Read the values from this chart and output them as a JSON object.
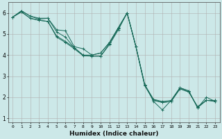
{
  "xlabel": "Humidex (Indice chaleur)",
  "ylabel": "",
  "bg_color": "#cce8e8",
  "grid_color": "#b0b0b0",
  "line_color": "#1a6b5a",
  "xlim": [
    -0.5,
    23.5
  ],
  "ylim": [
    0.8,
    6.5
  ],
  "yticks": [
    1,
    2,
    3,
    4,
    5,
    6
  ],
  "xticks": [
    0,
    1,
    2,
    3,
    4,
    5,
    6,
    7,
    8,
    9,
    10,
    11,
    12,
    13,
    14,
    15,
    16,
    17,
    18,
    19,
    20,
    21,
    22,
    23
  ],
  "lines": [
    [
      5.8,
      6.1,
      5.85,
      5.75,
      5.75,
      5.2,
      5.15,
      4.4,
      4.3,
      4.0,
      4.1,
      4.6,
      5.3,
      6.0,
      4.4,
      2.6,
      1.8,
      1.4,
      1.85,
      2.45,
      2.3,
      1.5,
      2.0,
      1.8
    ],
    [
      5.8,
      6.1,
      5.85,
      5.7,
      5.75,
      5.1,
      4.85,
      4.35,
      4.0,
      4.0,
      4.1,
      4.6,
      5.3,
      6.0,
      4.4,
      2.6,
      1.9,
      1.8,
      1.85,
      2.45,
      2.3,
      1.5,
      1.85,
      1.8
    ],
    [
      5.8,
      6.05,
      5.75,
      5.65,
      5.6,
      4.9,
      4.65,
      4.35,
      4.0,
      3.95,
      3.95,
      4.55,
      5.25,
      6.0,
      4.4,
      2.55,
      1.85,
      1.75,
      1.8,
      2.4,
      2.25,
      1.55,
      1.85,
      1.85
    ],
    [
      5.8,
      6.05,
      5.75,
      5.65,
      5.6,
      4.85,
      4.6,
      4.3,
      3.97,
      3.95,
      3.95,
      4.5,
      5.2,
      6.0,
      4.4,
      2.55,
      1.88,
      1.75,
      1.8,
      2.4,
      2.25,
      1.55,
      1.85,
      1.85
    ]
  ]
}
